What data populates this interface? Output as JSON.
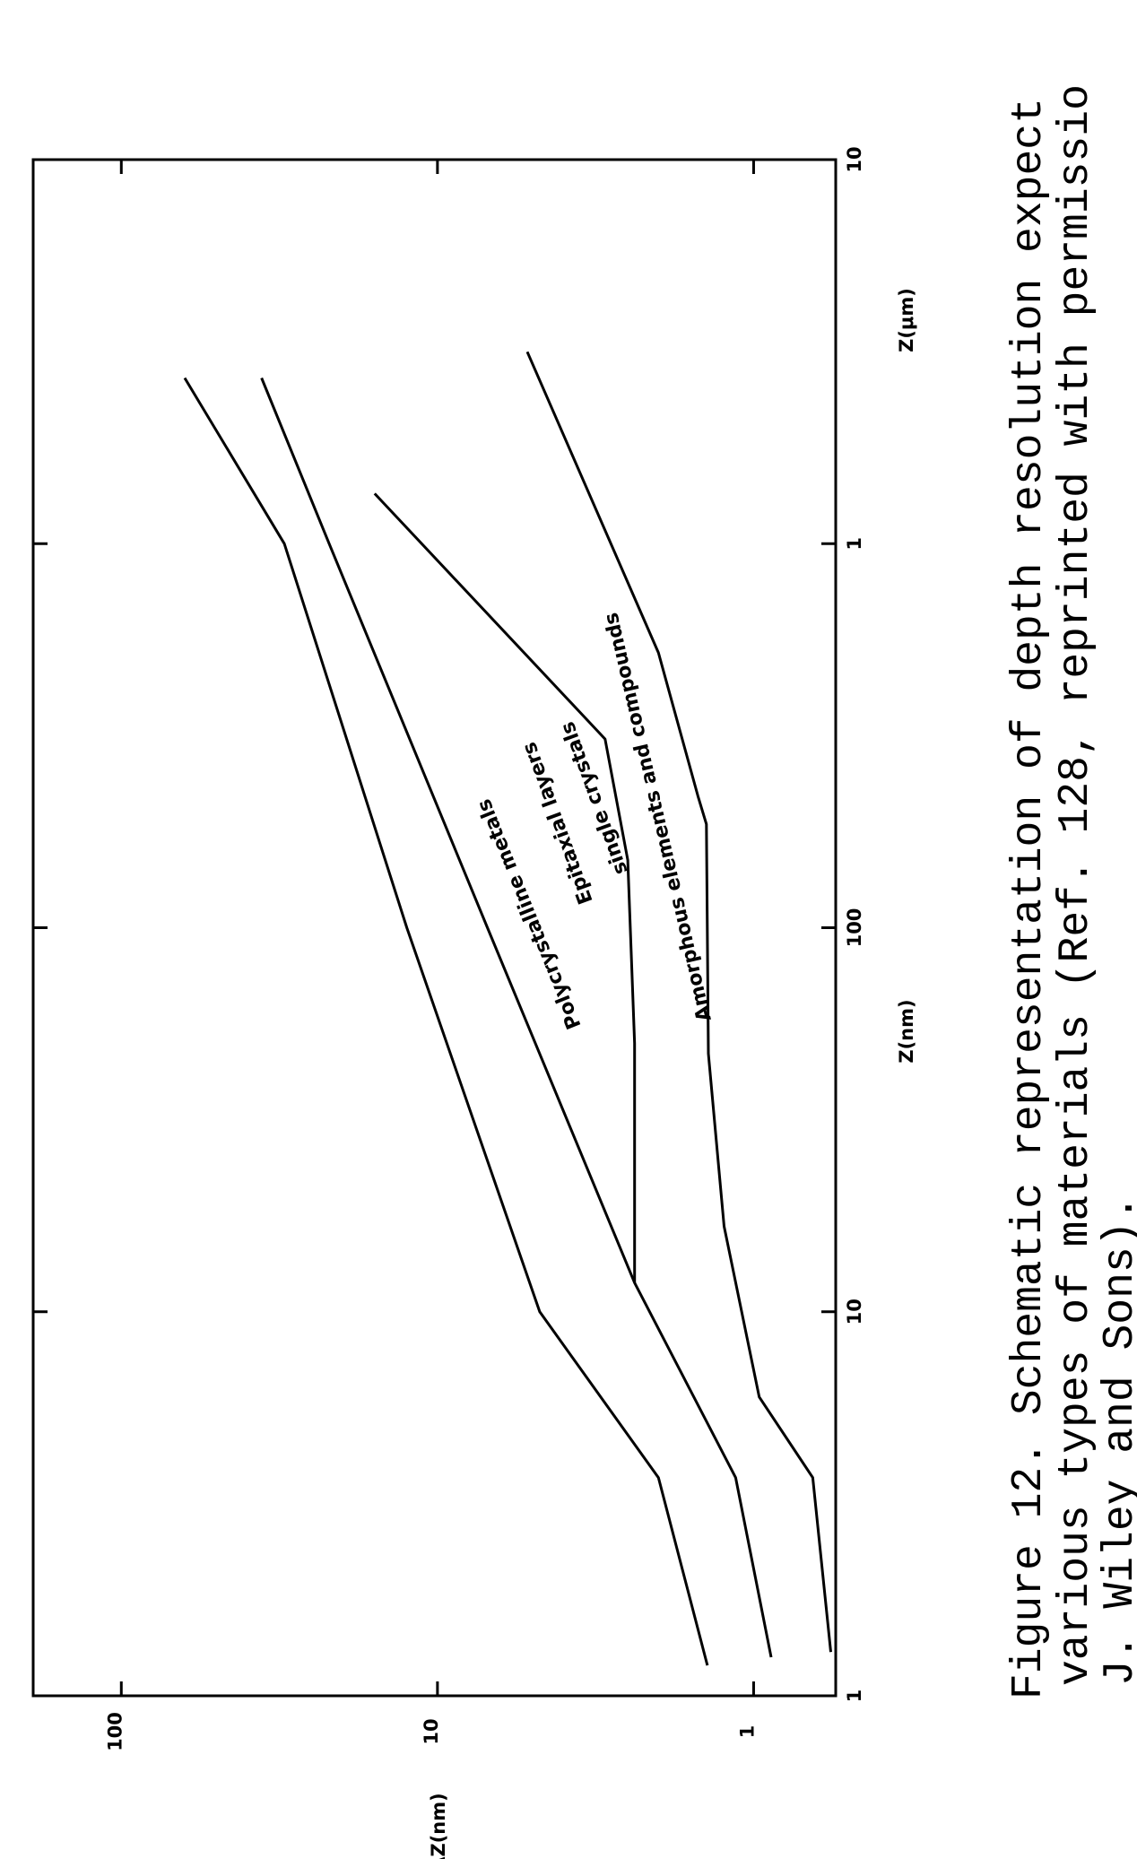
{
  "chart_data": {
    "type": "line",
    "xlabel": [
      "Z(nm)",
      "Z(μm)"
    ],
    "ylabel": "ΔZ(nm)",
    "log_x": true,
    "log_y": true,
    "grid": false,
    "xlim": [
      1,
      10000
    ],
    "xticks": [
      1,
      10,
      100,
      {
        "value": 1000,
        "label": "1"
      },
      {
        "value": 10000,
        "label": "10"
      }
    ],
    "ylim": [
      0.55,
      190
    ],
    "yticks": [
      1,
      10,
      100
    ],
    "series": [
      {
        "name": "Polycrystalline metals",
        "color": "#000000",
        "x": [
          1.2,
          3.7,
          10,
          100,
          1000,
          2700
        ],
        "values": [
          1.4,
          2.0,
          4.75,
          12.5,
          30.5,
          63
        ]
      },
      {
        "name": "Epitaxial layers",
        "color": "#000000",
        "x": [
          1.26,
          3.7,
          11.9,
          100,
          1000,
          2700
        ],
        "values": [
          0.88,
          1.14,
          2.38,
          6.95,
          22,
          36
        ]
      },
      {
        "name": "single crystals",
        "color": "#000000",
        "x": [
          11.9,
          50,
          150,
          310,
          1350
        ],
        "values": [
          2.38,
          2.38,
          2.5,
          2.95,
          15.8
        ]
      },
      {
        "name": "Amorphous elements and compounds",
        "color": "#000000",
        "x": [
          1.3,
          3.7,
          6,
          16.7,
          47,
          186,
          220,
          520,
          3160
        ],
        "values": [
          0.57,
          0.65,
          0.96,
          1.24,
          1.39,
          1.41,
          1.5,
          2.0,
          5.2
        ]
      }
    ],
    "caption": [
      "Figure 12.  Schematic representation of depth resolution expect",
      "various types of materials (Ref. 128, reprinted with permissio",
      "J. Wiley and Sons)."
    ]
  }
}
